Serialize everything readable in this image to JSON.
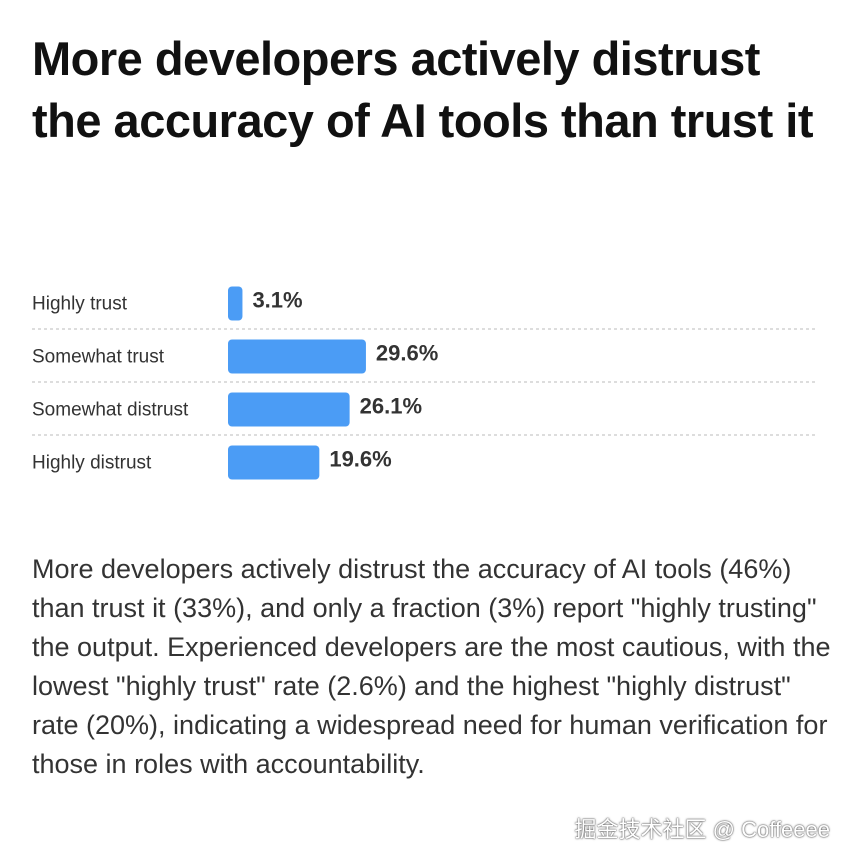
{
  "title": "More developers actively distrust the accuracy of AI tools than trust it",
  "chart_data": {
    "type": "hbar",
    "categories": [
      "Highly trust",
      "Somewhat trust",
      "Somewhat distrust",
      "Highly distrust"
    ],
    "values": [
      3.1,
      29.6,
      26.1,
      19.6
    ],
    "value_labels": [
      "3.1%",
      "29.6%",
      "26.1%",
      "19.6%"
    ],
    "color": "#4b9cf5"
  },
  "paragraph": "More developers actively distrust the accuracy of AI tools (46%) than trust it (33%), and only a fraction (3%) report \"highly trusting\" the output. Experienced developers are the most cautious, with the lowest \"highly trust\" rate (2.6%) and the highest \"highly distrust\" rate (20%), indicating a widespread need for human verification for those in roles with accountability.",
  "watermark": "掘金技术社区 @ Coffeeee"
}
